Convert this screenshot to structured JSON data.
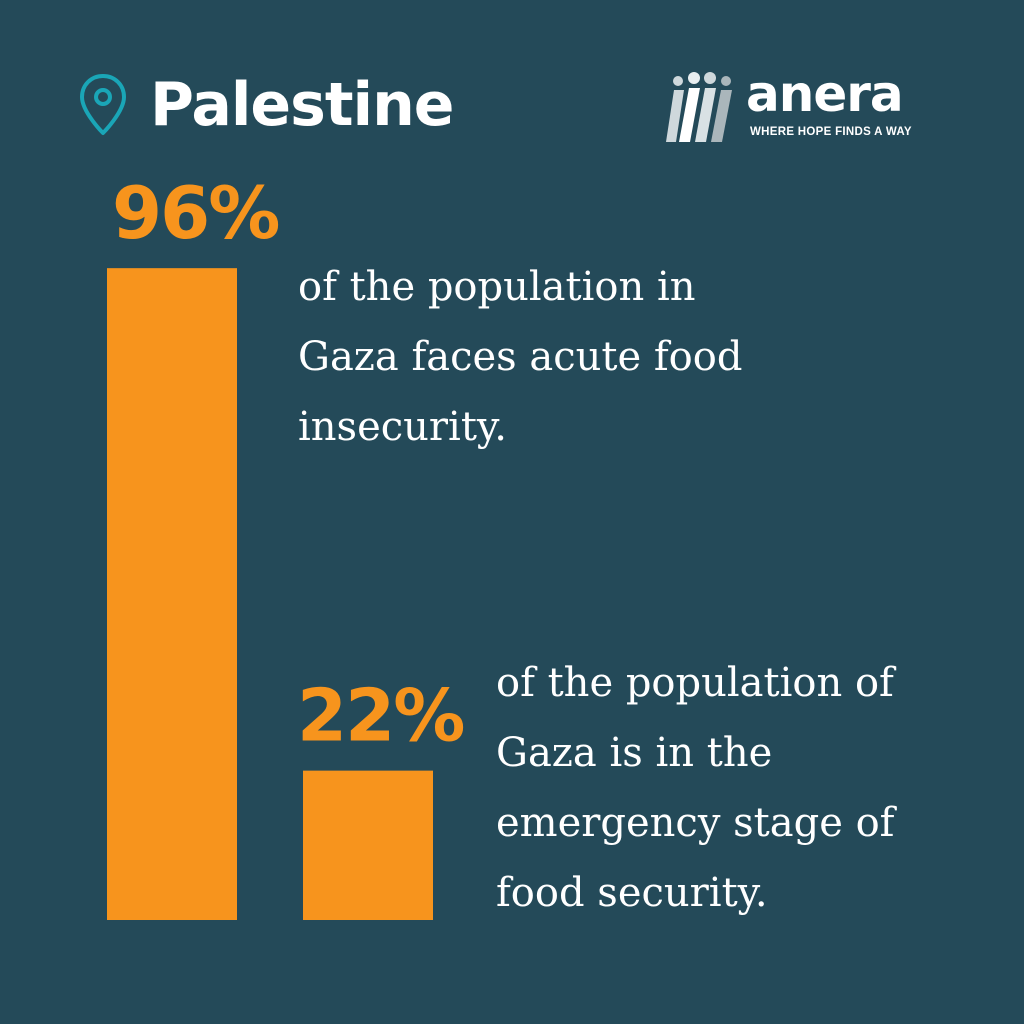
{
  "header": {
    "location": "Palestine",
    "location_icon": "map-pin-icon",
    "icon_color": "#1aa6b7"
  },
  "logo": {
    "wordmark": "anera",
    "tagline": "WHERE HOPE FINDS A WAY"
  },
  "colors": {
    "background": "#244a59",
    "bar": "#f7941d",
    "text": "#ffffff"
  },
  "chart_data": {
    "type": "bar",
    "categories": [
      "96%",
      "22%"
    ],
    "values": [
      96,
      22
    ],
    "value_labels": [
      "96%",
      "22%"
    ],
    "ylim": [
      0,
      100
    ],
    "grid": false,
    "title": "",
    "xlabel": "",
    "ylabel": ""
  },
  "stats": [
    {
      "value_label": "96%",
      "description_lines": [
        "of the population in",
        "Gaza faces acute food",
        "insecurity."
      ]
    },
    {
      "value_label": "22%",
      "description_lines": [
        "of the population of",
        "Gaza is in the",
        "emergency stage of",
        "food security."
      ]
    }
  ]
}
